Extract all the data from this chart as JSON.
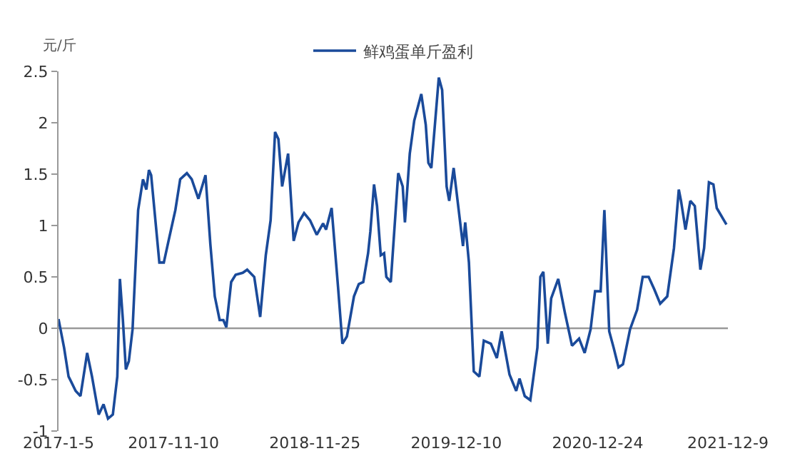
{
  "chart_data": {
    "type": "line",
    "ylabel": "元/斤",
    "legend": "top",
    "x": [
      "2017-01-05",
      "2017-01-20",
      "2017-02-01",
      "2017-02-08",
      "2017-02-20",
      "2017-03-05",
      "2017-03-23",
      "2017-04-05",
      "2017-04-23",
      "2017-05-06",
      "2017-05-18",
      "2017-05-31",
      "2017-06-12",
      "2017-06-19",
      "2017-06-27",
      "2017-07-05",
      "2017-07-13",
      "2017-07-23",
      "2017-08-07",
      "2017-08-20",
      "2017-08-29",
      "2017-09-05",
      "2017-09-11",
      "2017-10-03",
      "2017-10-15",
      "2017-10-27",
      "2017-11-15",
      "2017-11-28",
      "2017-12-16",
      "2017-12-29",
      "2018-01-16",
      "2018-02-04",
      "2018-02-17",
      "2018-03-01",
      "2018-03-14",
      "2018-03-24",
      "2018-04-01",
      "2018-04-14",
      "2018-04-26",
      "2018-05-15",
      "2018-05-27",
      "2018-06-15",
      "2018-07-01",
      "2018-07-16",
      "2018-07-29",
      "2018-08-10",
      "2018-08-19",
      "2018-08-29",
      "2018-09-14",
      "2018-09-29",
      "2018-10-12",
      "2018-10-27",
      "2018-11-12",
      "2018-11-30",
      "2018-12-17",
      "2018-12-25",
      "2019-01-09",
      "2019-01-26",
      "2019-02-07",
      "2019-02-19",
      "2019-03-10",
      "2019-03-23",
      "2019-04-04",
      "2019-04-17",
      "2019-04-23",
      "2019-05-03",
      "2019-05-11",
      "2019-05-21",
      "2019-05-30",
      "2019-06-05",
      "2019-06-17",
      "2019-07-07",
      "2019-07-19",
      "2019-07-25",
      "2019-08-07",
      "2019-08-19",
      "2019-09-07",
      "2019-09-19",
      "2019-09-26",
      "2019-10-04",
      "2019-10-24",
      "2019-11-02",
      "2019-11-14",
      "2019-11-21",
      "2019-12-03",
      "2019-12-28",
      "2020-01-03",
      "2020-01-13",
      "2020-01-26",
      "2020-02-10",
      "2020-02-22",
      "2020-03-12",
      "2020-03-28",
      "2020-04-10",
      "2020-05-01",
      "2020-05-19",
      "2020-05-28",
      "2020-06-11",
      "2020-06-26",
      "2020-07-15",
      "2020-07-23",
      "2020-07-31",
      "2020-08-12",
      "2020-08-21",
      "2020-09-09",
      "2020-09-27",
      "2020-10-16",
      "2020-11-04",
      "2020-11-19",
      "2020-12-05",
      "2020-12-17",
      "2021-01-01",
      "2021-01-11",
      "2021-01-24",
      "2021-02-05",
      "2021-02-18",
      "2021-03-02",
      "2021-03-21",
      "2021-04-09",
      "2021-04-24",
      "2021-05-10",
      "2021-05-25",
      "2021-06-10",
      "2021-06-29",
      "2021-07-17",
      "2021-07-30",
      "2021-08-05",
      "2021-08-17",
      "2021-08-30",
      "2021-09-11",
      "2021-09-26",
      "2021-10-06",
      "2021-10-19",
      "2021-10-31",
      "2021-11-09",
      "2021-12-05"
    ],
    "series": [
      {
        "name": "鲜鸡蛋单斤盈利",
        "color": "#1a4a9a",
        "values": [
          0.09,
          -0.19,
          -0.47,
          -0.52,
          -0.61,
          -0.66,
          -0.24,
          -0.47,
          -0.84,
          -0.74,
          -0.88,
          -0.84,
          -0.47,
          0.48,
          0.08,
          -0.4,
          -0.32,
          -0.01,
          1.15,
          1.45,
          1.35,
          1.54,
          1.49,
          0.64,
          0.64,
          0.84,
          1.15,
          1.45,
          1.51,
          1.45,
          1.26,
          1.49,
          0.82,
          0.31,
          0.08,
          0.08,
          0.01,
          0.45,
          0.52,
          0.54,
          0.57,
          0.5,
          0.11,
          0.71,
          1.05,
          1.91,
          1.84,
          1.38,
          1.7,
          0.85,
          1.03,
          1.12,
          1.05,
          0.91,
          1.02,
          0.96,
          1.17,
          0.41,
          -0.15,
          -0.08,
          0.31,
          0.43,
          0.45,
          0.73,
          0.94,
          1.4,
          1.19,
          0.71,
          0.73,
          0.5,
          0.45,
          1.51,
          1.38,
          1.03,
          1.7,
          2.02,
          2.28,
          1.98,
          1.61,
          1.56,
          2.44,
          2.32,
          1.38,
          1.24,
          1.56,
          0.8,
          1.03,
          0.64,
          -0.42,
          -0.47,
          -0.12,
          -0.15,
          -0.29,
          -0.03,
          -0.45,
          -0.61,
          -0.49,
          -0.66,
          -0.7,
          -0.19,
          0.5,
          0.55,
          -0.15,
          0.29,
          0.48,
          0.15,
          -0.17,
          -0.1,
          -0.24,
          -0.01,
          0.36,
          0.36,
          1.15,
          -0.03,
          -0.19,
          -0.38,
          -0.35,
          -0.01,
          0.18,
          0.5,
          0.5,
          0.38,
          0.24,
          0.31,
          0.78,
          1.35,
          1.24,
          0.96,
          1.24,
          1.19,
          0.57,
          0.78,
          1.42,
          1.4,
          1.17,
          1.01
        ]
      }
    ],
    "xlim": [
      "2017-01-05",
      "2021-12-09"
    ],
    "xticks": [
      {
        "value": "2017-01-05",
        "label": "2017-1-5"
      },
      {
        "value": "2017-11-10",
        "label": "2017-11-10"
      },
      {
        "value": "2018-11-25",
        "label": "2018-11-25"
      },
      {
        "value": "2019-12-10",
        "label": "2019-12-10"
      },
      {
        "value": "2020-12-24",
        "label": "2020-12-24"
      },
      {
        "value": "2021-12-09",
        "label": "2021-12-9"
      }
    ],
    "ylim": [
      -1,
      2.5
    ],
    "yticks": [
      2.5,
      2,
      1.5,
      1,
      0.5,
      0,
      -0.5,
      -1
    ],
    "grid": false,
    "ref_lines": [
      {
        "axis": "y",
        "value": 0,
        "color": "#999999"
      }
    ]
  }
}
